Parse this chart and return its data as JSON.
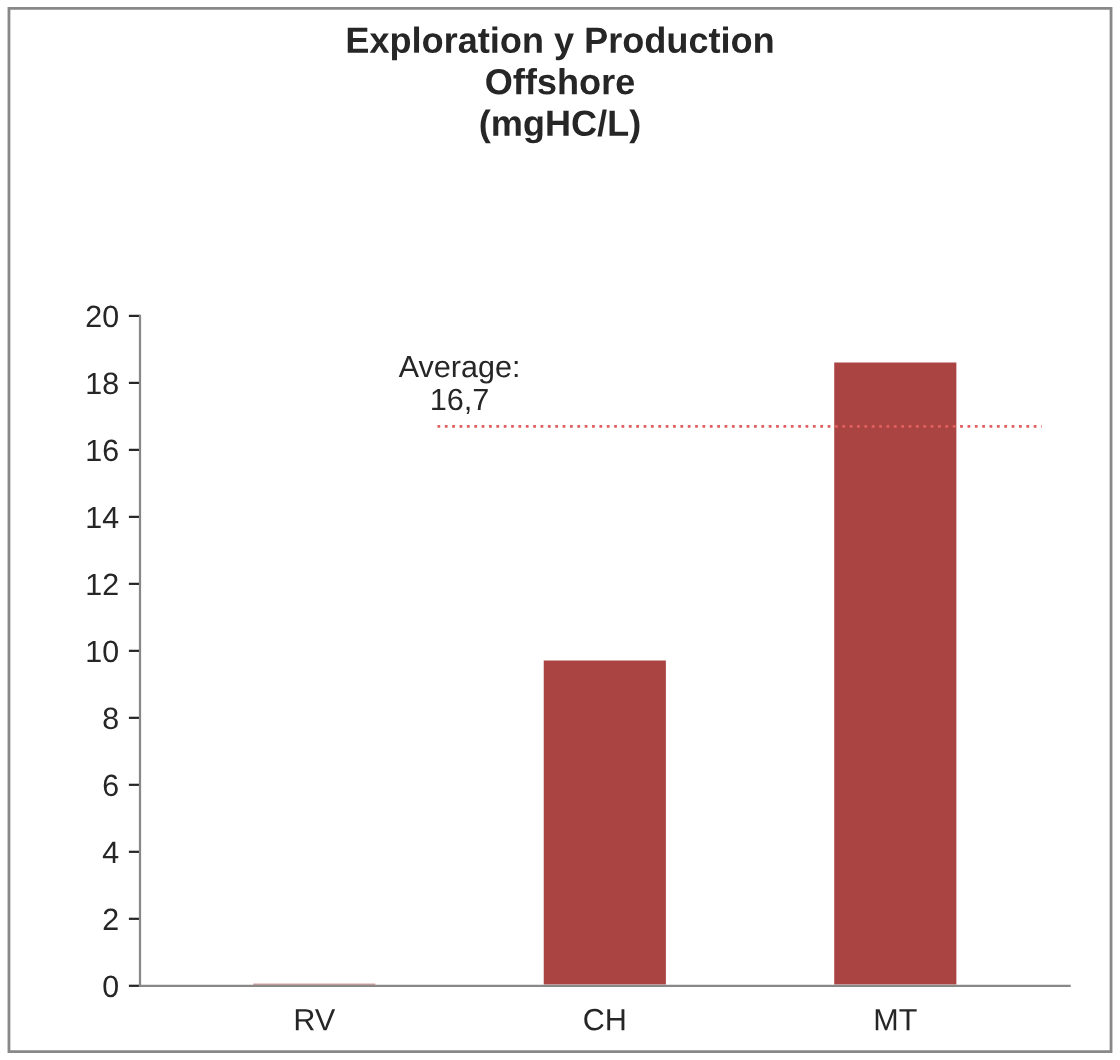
{
  "chart_data": {
    "type": "bar",
    "title": "Exploration y Production\nOffshore\n(mgHC/L)",
    "categories": [
      "RV",
      "CH",
      "MT"
    ],
    "values": [
      0.1,
      9.75,
      18.65
    ],
    "color": "#a94442",
    "ylim": [
      0,
      20
    ],
    "yticks": [
      0,
      2,
      4,
      6,
      8,
      10,
      12,
      14,
      16,
      18,
      20
    ],
    "ref_lines": [
      {
        "axis": "y",
        "value": 16.7,
        "label": "Average:\n16,7",
        "color": "#e06060",
        "line_style": "dotted"
      }
    ],
    "grid": false,
    "legend": false
  }
}
